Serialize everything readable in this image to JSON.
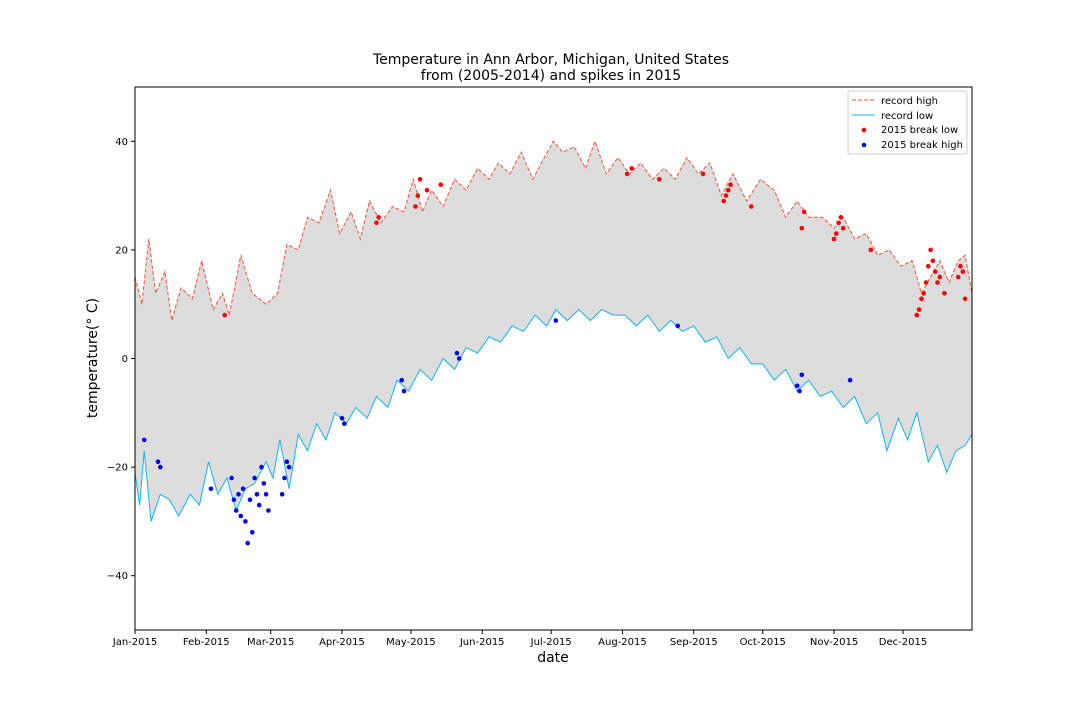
{
  "chart_data": {
    "type": "line",
    "title": "Temperature in Ann Arbor, Michigan, United States",
    "subtitle": "from (2005-2014) and spikes in 2015",
    "xlabel": "date",
    "ylabel": "temperature(° C)",
    "ylim": [
      -50,
      50
    ],
    "yticks": [
      -40,
      -20,
      0,
      20,
      40
    ],
    "xlim": [
      "2015-01-01",
      "2015-12-31"
    ],
    "xticks": [
      "Jan-2015",
      "Feb-2015",
      "Mar-2015",
      "Apr-2015",
      "May-2015",
      "Jun-2015",
      "Jul-2015",
      "Aug-2015",
      "Sep-2015",
      "Oct-2015",
      "Nov-2015",
      "Dec-2015"
    ],
    "fill_between": {
      "color": "#dddddd",
      "between": [
        "record high",
        "record low"
      ]
    },
    "legend": {
      "placement": "top-right",
      "entries": [
        "record high",
        "record low",
        "2015 break low",
        "2015 break high"
      ]
    },
    "series": [
      {
        "name": "record high",
        "style": "dashed",
        "color": "#f0533a",
        "points": [
          [
            "2015-01-01",
            15
          ],
          [
            "2015-01-04",
            10
          ],
          [
            "2015-01-07",
            22
          ],
          [
            "2015-01-10",
            12
          ],
          [
            "2015-01-14",
            16
          ],
          [
            "2015-01-17",
            7
          ],
          [
            "2015-01-21",
            13
          ],
          [
            "2015-01-26",
            11
          ],
          [
            "2015-01-30",
            18
          ],
          [
            "2015-02-04",
            9
          ],
          [
            "2015-02-08",
            12
          ],
          [
            "2015-02-11",
            8
          ],
          [
            "2015-02-16",
            19
          ],
          [
            "2015-02-21",
            12
          ],
          [
            "2015-02-27",
            10
          ],
          [
            "2015-03-04",
            12
          ],
          [
            "2015-03-08",
            21
          ],
          [
            "2015-03-13",
            20
          ],
          [
            "2015-03-17",
            26
          ],
          [
            "2015-03-22",
            25
          ],
          [
            "2015-03-27",
            31
          ],
          [
            "2015-03-31",
            23
          ],
          [
            "2015-04-05",
            27
          ],
          [
            "2015-04-09",
            22
          ],
          [
            "2015-04-13",
            29
          ],
          [
            "2015-04-18",
            25
          ],
          [
            "2015-04-23",
            28
          ],
          [
            "2015-04-28",
            27
          ],
          [
            "2015-05-02",
            33
          ],
          [
            "2015-05-06",
            27
          ],
          [
            "2015-05-10",
            31
          ],
          [
            "2015-05-15",
            28
          ],
          [
            "2015-05-20",
            33
          ],
          [
            "2015-05-25",
            31
          ],
          [
            "2015-05-30",
            35
          ],
          [
            "2015-06-04",
            33
          ],
          [
            "2015-06-08",
            36
          ],
          [
            "2015-06-13",
            34
          ],
          [
            "2015-06-18",
            38
          ],
          [
            "2015-06-23",
            33
          ],
          [
            "2015-06-28",
            37
          ],
          [
            "2015-07-02",
            40
          ],
          [
            "2015-07-06",
            38
          ],
          [
            "2015-07-11",
            39
          ],
          [
            "2015-07-16",
            35
          ],
          [
            "2015-07-20",
            40
          ],
          [
            "2015-07-25",
            34
          ],
          [
            "2015-07-30",
            37
          ],
          [
            "2015-08-04",
            34
          ],
          [
            "2015-08-09",
            36
          ],
          [
            "2015-08-14",
            33
          ],
          [
            "2015-08-19",
            35
          ],
          [
            "2015-08-24",
            33
          ],
          [
            "2015-08-29",
            37
          ],
          [
            "2015-09-03",
            34
          ],
          [
            "2015-09-08",
            36
          ],
          [
            "2015-09-13",
            30
          ],
          [
            "2015-09-18",
            34
          ],
          [
            "2015-09-24",
            29
          ],
          [
            "2015-09-30",
            33
          ],
          [
            "2015-10-06",
            31
          ],
          [
            "2015-10-11",
            26
          ],
          [
            "2015-10-16",
            29
          ],
          [
            "2015-10-21",
            26
          ],
          [
            "2015-10-27",
            26
          ],
          [
            "2015-11-01",
            24
          ],
          [
            "2015-11-05",
            26
          ],
          [
            "2015-11-10",
            22
          ],
          [
            "2015-11-15",
            23
          ],
          [
            "2015-11-20",
            19
          ],
          [
            "2015-11-25",
            20
          ],
          [
            "2015-11-30",
            17
          ],
          [
            "2015-12-05",
            18
          ],
          [
            "2015-12-09",
            12
          ],
          [
            "2015-12-13",
            15
          ],
          [
            "2015-12-17",
            18
          ],
          [
            "2015-12-21",
            14
          ],
          [
            "2015-12-25",
            18
          ],
          [
            "2015-12-28",
            19
          ],
          [
            "2015-12-31",
            12
          ]
        ]
      },
      {
        "name": "record low",
        "style": "solid",
        "color": "#12b4e8",
        "points": [
          [
            "2015-01-01",
            -21
          ],
          [
            "2015-01-03",
            -27
          ],
          [
            "2015-01-05",
            -17
          ],
          [
            "2015-01-08",
            -30
          ],
          [
            "2015-01-12",
            -25
          ],
          [
            "2015-01-16",
            -26
          ],
          [
            "2015-01-20",
            -29
          ],
          [
            "2015-01-25",
            -25
          ],
          [
            "2015-01-29",
            -27
          ],
          [
            "2015-02-02",
            -19
          ],
          [
            "2015-02-06",
            -25
          ],
          [
            "2015-02-10",
            -22
          ],
          [
            "2015-02-14",
            -28
          ],
          [
            "2015-02-18",
            -24
          ],
          [
            "2015-02-22",
            -23
          ],
          [
            "2015-02-27",
            -19
          ],
          [
            "2015-03-02",
            -22
          ],
          [
            "2015-03-05",
            -15
          ],
          [
            "2015-03-09",
            -24
          ],
          [
            "2015-03-13",
            -14
          ],
          [
            "2015-03-17",
            -17
          ],
          [
            "2015-03-21",
            -12
          ],
          [
            "2015-03-25",
            -15
          ],
          [
            "2015-03-29",
            -10
          ],
          [
            "2015-04-03",
            -12
          ],
          [
            "2015-04-07",
            -9
          ],
          [
            "2015-04-12",
            -11
          ],
          [
            "2015-04-16",
            -7
          ],
          [
            "2015-04-21",
            -9
          ],
          [
            "2015-04-25",
            -4
          ],
          [
            "2015-04-30",
            -6
          ],
          [
            "2015-05-05",
            -2
          ],
          [
            "2015-05-10",
            -4
          ],
          [
            "2015-05-15",
            0
          ],
          [
            "2015-05-20",
            -2
          ],
          [
            "2015-05-25",
            2
          ],
          [
            "2015-05-30",
            1
          ],
          [
            "2015-06-04",
            4
          ],
          [
            "2015-06-09",
            3
          ],
          [
            "2015-06-14",
            6
          ],
          [
            "2015-06-19",
            5
          ],
          [
            "2015-06-24",
            8
          ],
          [
            "2015-06-29",
            6
          ],
          [
            "2015-07-03",
            9
          ],
          [
            "2015-07-08",
            7
          ],
          [
            "2015-07-13",
            9
          ],
          [
            "2015-07-18",
            7
          ],
          [
            "2015-07-23",
            9
          ],
          [
            "2015-07-28",
            8
          ],
          [
            "2015-08-02",
            8
          ],
          [
            "2015-08-07",
            6
          ],
          [
            "2015-08-12",
            8
          ],
          [
            "2015-08-17",
            5
          ],
          [
            "2015-08-22",
            7
          ],
          [
            "2015-08-27",
            5
          ],
          [
            "2015-09-01",
            6
          ],
          [
            "2015-09-06",
            3
          ],
          [
            "2015-09-11",
            4
          ],
          [
            "2015-09-16",
            0
          ],
          [
            "2015-09-21",
            2
          ],
          [
            "2015-09-26",
            -1
          ],
          [
            "2015-10-01",
            -1
          ],
          [
            "2015-10-06",
            -4
          ],
          [
            "2015-10-11",
            -2
          ],
          [
            "2015-10-16",
            -6
          ],
          [
            "2015-10-21",
            -4
          ],
          [
            "2015-10-26",
            -7
          ],
          [
            "2015-10-31",
            -6
          ],
          [
            "2015-11-05",
            -9
          ],
          [
            "2015-11-10",
            -7
          ],
          [
            "2015-11-15",
            -12
          ],
          [
            "2015-11-20",
            -10
          ],
          [
            "2015-11-24",
            -17
          ],
          [
            "2015-11-29",
            -11
          ],
          [
            "2015-12-03",
            -15
          ],
          [
            "2015-12-07",
            -10
          ],
          [
            "2015-12-12",
            -19
          ],
          [
            "2015-12-16",
            -16
          ],
          [
            "2015-12-20",
            -21
          ],
          [
            "2015-12-24",
            -17
          ],
          [
            "2015-12-28",
            -16
          ],
          [
            "2015-12-31",
            -14
          ]
        ]
      }
    ],
    "scatter_series": [
      {
        "name": "2015 break low",
        "color": "#ff0000",
        "points": [
          [
            "2015-02-09",
            8
          ],
          [
            "2015-04-16",
            25
          ],
          [
            "2015-04-17",
            26
          ],
          [
            "2015-05-03",
            28
          ],
          [
            "2015-05-04",
            30
          ],
          [
            "2015-05-05",
            33
          ],
          [
            "2015-05-08",
            31
          ],
          [
            "2015-05-14",
            32
          ],
          [
            "2015-08-03",
            34
          ],
          [
            "2015-08-05",
            35
          ],
          [
            "2015-08-17",
            33
          ],
          [
            "2015-09-05",
            34
          ],
          [
            "2015-09-14",
            29
          ],
          [
            "2015-09-15",
            30
          ],
          [
            "2015-09-16",
            31
          ],
          [
            "2015-09-17",
            32
          ],
          [
            "2015-09-26",
            28
          ],
          [
            "2015-10-18",
            24
          ],
          [
            "2015-10-19",
            27
          ],
          [
            "2015-11-01",
            22
          ],
          [
            "2015-11-02",
            23
          ],
          [
            "2015-11-03",
            25
          ],
          [
            "2015-11-04",
            26
          ],
          [
            "2015-11-05",
            24
          ],
          [
            "2015-11-17",
            20
          ],
          [
            "2015-12-07",
            8
          ],
          [
            "2015-12-08",
            9
          ],
          [
            "2015-12-09",
            11
          ],
          [
            "2015-12-10",
            12
          ],
          [
            "2015-12-11",
            14
          ],
          [
            "2015-12-12",
            17
          ],
          [
            "2015-12-13",
            20
          ],
          [
            "2015-12-14",
            18
          ],
          [
            "2015-12-15",
            16
          ],
          [
            "2015-12-16",
            14
          ],
          [
            "2015-12-17",
            15
          ],
          [
            "2015-12-19",
            12
          ],
          [
            "2015-12-25",
            15
          ],
          [
            "2015-12-26",
            17
          ],
          [
            "2015-12-27",
            16
          ],
          [
            "2015-12-28",
            11
          ]
        ]
      },
      {
        "name": "2015 break high",
        "color": "#0000ff",
        "points": [
          [
            "2015-01-05",
            -15
          ],
          [
            "2015-01-11",
            -19
          ],
          [
            "2015-01-12",
            -20
          ],
          [
            "2015-02-03",
            -24
          ],
          [
            "2015-02-12",
            -22
          ],
          [
            "2015-02-13",
            -26
          ],
          [
            "2015-02-14",
            -28
          ],
          [
            "2015-02-15",
            -25
          ],
          [
            "2015-02-16",
            -29
          ],
          [
            "2015-02-17",
            -24
          ],
          [
            "2015-02-18",
            -30
          ],
          [
            "2015-02-19",
            -34
          ],
          [
            "2015-02-20",
            -26
          ],
          [
            "2015-02-21",
            -32
          ],
          [
            "2015-02-22",
            -22
          ],
          [
            "2015-02-23",
            -25
          ],
          [
            "2015-02-24",
            -27
          ],
          [
            "2015-02-25",
            -20
          ],
          [
            "2015-02-26",
            -23
          ],
          [
            "2015-02-27",
            -25
          ],
          [
            "2015-02-28",
            -28
          ],
          [
            "2015-03-06",
            -25
          ],
          [
            "2015-03-07",
            -22
          ],
          [
            "2015-03-08",
            -19
          ],
          [
            "2015-03-09",
            -20
          ],
          [
            "2015-04-01",
            -11
          ],
          [
            "2015-04-02",
            -12
          ],
          [
            "2015-04-27",
            -4
          ],
          [
            "2015-04-28",
            -6
          ],
          [
            "2015-05-21",
            1
          ],
          [
            "2015-05-22",
            0
          ],
          [
            "2015-07-03",
            7
          ],
          [
            "2015-08-25",
            6
          ],
          [
            "2015-10-16",
            -5
          ],
          [
            "2015-10-17",
            -6
          ],
          [
            "2015-10-18",
            -3
          ],
          [
            "2015-11-08",
            -4
          ]
        ]
      }
    ]
  }
}
